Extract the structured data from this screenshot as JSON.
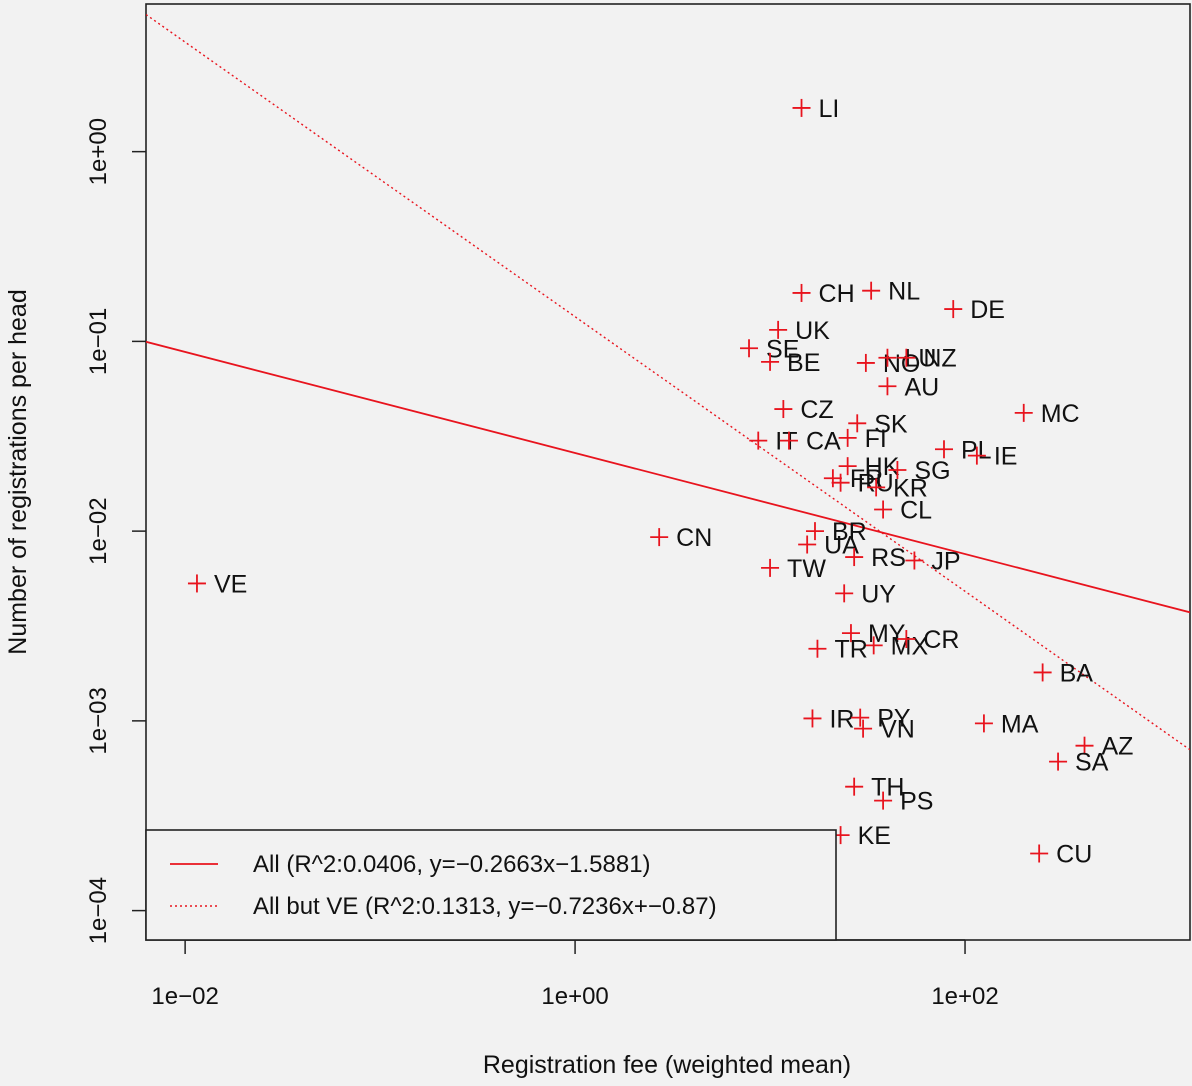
{
  "chart_data": {
    "type": "scatter",
    "xlabel": "Registration fee (weighted mean)",
    "ylabel": "Number of registrations per head",
    "x_scale": "log10",
    "y_scale": "log10",
    "xlim": [
      0.0063,
      1425
    ],
    "ylim": [
      7e-05,
      6.0
    ],
    "x_ticks": [
      {
        "value": 0.01,
        "label": "1e−02"
      },
      {
        "value": 1,
        "label": "1e+00"
      },
      {
        "value": 100,
        "label": "1e+02"
      }
    ],
    "y_ticks": [
      {
        "value": 0.0001,
        "label": "1e−04"
      },
      {
        "value": 0.001,
        "label": "1e−03"
      },
      {
        "value": 0.01,
        "label": "1e−02"
      },
      {
        "value": 0.1,
        "label": "1e−01"
      },
      {
        "value": 1,
        "label": "1e+00"
      }
    ],
    "points": [
      {
        "label": "LI",
        "x": 14.5,
        "y": 1.7
      },
      {
        "label": "CH",
        "x": 14.5,
        "y": 0.18
      },
      {
        "label": "NL",
        "x": 33,
        "y": 0.185
      },
      {
        "label": "DE",
        "x": 87,
        "y": 0.148
      },
      {
        "label": "UK",
        "x": 11,
        "y": 0.115
      },
      {
        "label": "SE",
        "x": 7.8,
        "y": 0.092
      },
      {
        "label": "BE",
        "x": 10,
        "y": 0.078
      },
      {
        "label": "NO",
        "x": 31,
        "y": 0.077
      },
      {
        "label": "LU",
        "x": 40,
        "y": 0.082
      },
      {
        "label": "NZ",
        "x": 50,
        "y": 0.082
      },
      {
        "label": "AU",
        "x": 40,
        "y": 0.058
      },
      {
        "label": "CZ",
        "x": 11.7,
        "y": 0.044
      },
      {
        "label": "SK",
        "x": 28,
        "y": 0.037
      },
      {
        "label": "MC",
        "x": 200,
        "y": 0.042
      },
      {
        "label": "IT",
        "x": 8.7,
        "y": 0.03
      },
      {
        "label": "CA",
        "x": 12.5,
        "y": 0.03
      },
      {
        "label": "FI",
        "x": 25,
        "y": 0.031
      },
      {
        "label": "PL",
        "x": 78,
        "y": 0.027
      },
      {
        "label": "IE",
        "x": 115,
        "y": 0.025
      },
      {
        "label": "HK",
        "x": 25,
        "y": 0.022
      },
      {
        "label": "SG",
        "x": 45,
        "y": 0.021
      },
      {
        "label": "FR",
        "x": 21,
        "y": 0.019
      },
      {
        "label": "RU",
        "x": 23,
        "y": 0.018
      },
      {
        "label": "KR",
        "x": 35,
        "y": 0.017
      },
      {
        "label": "CL",
        "x": 38,
        "y": 0.013
      },
      {
        "label": "BR",
        "x": 17,
        "y": 0.01
      },
      {
        "label": "CN",
        "x": 2.7,
        "y": 0.0093
      },
      {
        "label": "UA",
        "x": 15.5,
        "y": 0.0085
      },
      {
        "label": "RS",
        "x": 27,
        "y": 0.0073
      },
      {
        "label": "JP",
        "x": 55,
        "y": 0.007
      },
      {
        "label": "TW",
        "x": 10,
        "y": 0.0064
      },
      {
        "label": "VE",
        "x": 0.0115,
        "y": 0.0053
      },
      {
        "label": "UY",
        "x": 24,
        "y": 0.0047
      },
      {
        "label": "MY",
        "x": 26,
        "y": 0.0029
      },
      {
        "label": "MX",
        "x": 34,
        "y": 0.0025
      },
      {
        "label": "CR",
        "x": 50,
        "y": 0.0027
      },
      {
        "label": "TR",
        "x": 17.5,
        "y": 0.0024
      },
      {
        "label": "BA",
        "x": 250,
        "y": 0.0018
      },
      {
        "label": "IR",
        "x": 16.5,
        "y": 0.00103
      },
      {
        "label": "PY",
        "x": 29,
        "y": 0.00104
      },
      {
        "label": "VN",
        "x": 30,
        "y": 0.00091
      },
      {
        "label": "MA",
        "x": 125,
        "y": 0.00097
      },
      {
        "label": "AZ",
        "x": 410,
        "y": 0.00074
      },
      {
        "label": "SA",
        "x": 300,
        "y": 0.00061
      },
      {
        "label": "TH",
        "x": 27,
        "y": 0.00045
      },
      {
        "label": "PS",
        "x": 38,
        "y": 0.00038
      },
      {
        "label": "KE",
        "x": 23,
        "y": 0.00025
      },
      {
        "label": "CU",
        "x": 240,
        "y": 0.0002
      }
    ],
    "lines": [
      {
        "name": "All (R^2:0.0406, y=−0.2663x−1.5881)",
        "style": "solid",
        "color": "#e8141e",
        "slope": -0.2663,
        "intercept": -1.5881
      },
      {
        "name": "All but VE (R^2:0.1313, y=−0.7236x+−0.87)",
        "style": "dotted",
        "color": "#e8141e",
        "slope": -0.7236,
        "intercept": -0.87
      }
    ],
    "legend_position": "bottom-left",
    "grid": false,
    "colors": {
      "points": "#e8141e",
      "background": "#f2f2f2",
      "axis": "#222222"
    }
  }
}
